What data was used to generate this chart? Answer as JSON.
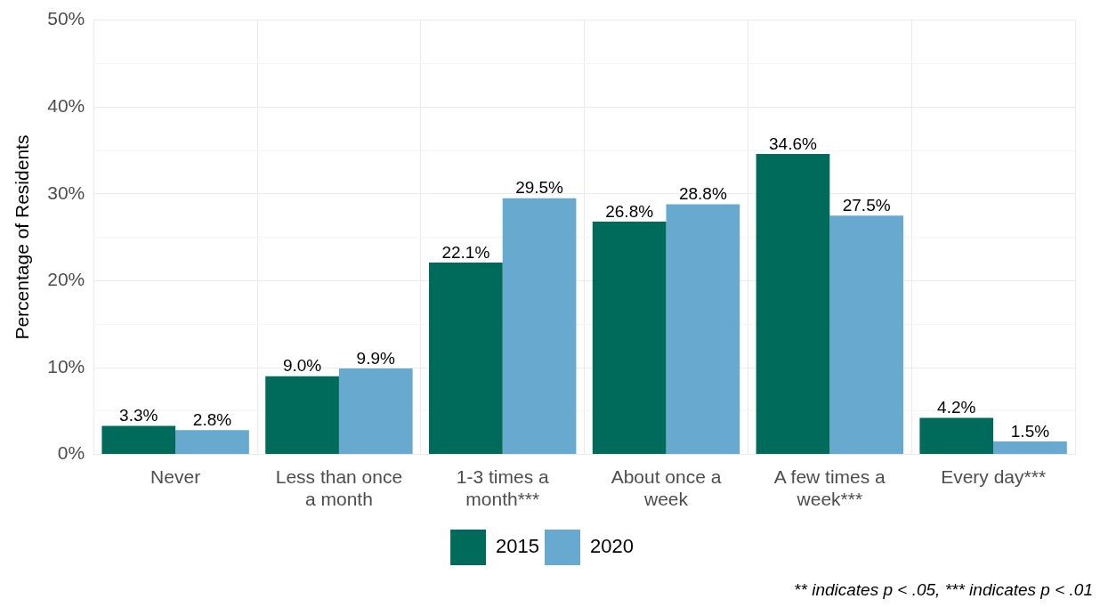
{
  "chart_data": {
    "type": "bar",
    "ylabel": "Percentage of Residents",
    "categories": [
      "Never",
      "Less than once a month",
      "1-3 times a month***",
      "About once a week",
      "A few times a week***",
      "Every day***"
    ],
    "series": [
      {
        "name": "2015",
        "color": "#006b5a",
        "values": [
          3.3,
          9.0,
          22.1,
          26.8,
          34.6,
          4.2
        ],
        "value_labels": [
          "3.3%",
          "9.0%",
          "22.1%",
          "26.8%",
          "34.6%",
          "4.2%"
        ]
      },
      {
        "name": "2020",
        "color": "#67a9cf",
        "values": [
          2.8,
          9.9,
          29.5,
          28.8,
          27.5,
          1.5
        ],
        "value_labels": [
          "2.8%",
          "9.9%",
          "29.5%",
          "28.8%",
          "27.5%",
          "1.5%"
        ]
      }
    ],
    "ylim": [
      0,
      50
    ],
    "yticks": [
      {
        "value": 0,
        "label": "0%"
      },
      {
        "value": 5,
        "label": null
      },
      {
        "value": 10,
        "label": "10%"
      },
      {
        "value": 15,
        "label": null
      },
      {
        "value": 20,
        "label": "20%"
      },
      {
        "value": 25,
        "label": null
      },
      {
        "value": 30,
        "label": "30%"
      },
      {
        "value": 35,
        "label": null
      },
      {
        "value": 40,
        "label": "40%"
      },
      {
        "value": 45,
        "label": null
      },
      {
        "value": 50,
        "label": "50%"
      }
    ],
    "grid": true,
    "legend": "bottom",
    "annotations": [
      "** indicates p < .05, *** indicates p < .01"
    ]
  }
}
